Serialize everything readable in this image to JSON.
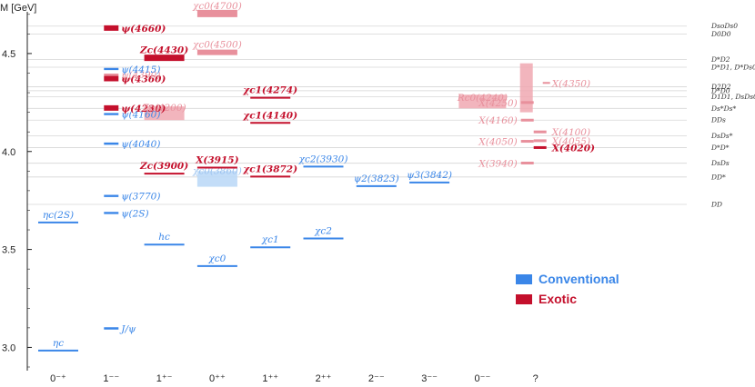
{
  "chart_data": {
    "type": "spectrum",
    "ylabel": "M [GeV]",
    "ylim": [
      2.9,
      4.75
    ],
    "yticks": [
      "3.0",
      "3.5",
      "4.0",
      "4.5"
    ],
    "categories": [
      "0⁻⁺",
      "1⁻⁻",
      "1⁺⁻",
      "0⁺⁺",
      "1⁺⁺",
      "2⁺⁺",
      "2⁻⁻",
      "3⁻⁻",
      "0⁻⁻",
      "?"
    ],
    "colors": {
      "conventional": "#3a86e8",
      "exotic": "#c4102c",
      "exotic_light": "#e8909c",
      "conventional_light": "#a9cdf4",
      "band": "#f0a8b2"
    },
    "legend": [
      {
        "label": "Conventional",
        "kind": "conventional"
      },
      {
        "label": "Exotic",
        "kind": "exotic"
      }
    ],
    "thresholds": [
      {
        "mass": 4.64,
        "label": "DsoDs0"
      },
      {
        "mass": 4.6,
        "label": "D0D0"
      },
      {
        "mass": 4.47,
        "label": "D*D2"
      },
      {
        "mass": 4.43,
        "label": "D*D1, D*Ds0"
      },
      {
        "mass": 4.33,
        "label": "D2D2"
      },
      {
        "mass": 4.31,
        "label": "D*D0"
      },
      {
        "mass": 4.28,
        "label": "D1D1, DsDs0"
      },
      {
        "mass": 4.22,
        "label": "Ds*Ds*"
      },
      {
        "mass": 4.16,
        "label": "DDs"
      },
      {
        "mass": 4.08,
        "label": "DsDs*"
      },
      {
        "mass": 4.02,
        "label": "D*D*"
      },
      {
        "mass": 3.94,
        "label": "DsDs"
      },
      {
        "mass": 3.87,
        "label": "DD*"
      },
      {
        "mass": 3.73,
        "label": "DD"
      }
    ],
    "states": [
      {
        "cat": 0,
        "mass": 2.984,
        "label": "ηc",
        "kind": "conventional"
      },
      {
        "cat": 0,
        "mass": 3.638,
        "label": "ηc(2S)",
        "kind": "conventional"
      },
      {
        "cat": 1,
        "mass": 3.097,
        "label": "J/ψ",
        "kind": "conventional"
      },
      {
        "cat": 1,
        "mass": 3.686,
        "label": "ψ(2S)",
        "kind": "conventional"
      },
      {
        "cat": 1,
        "mass": 3.773,
        "label": "ψ(3770)",
        "kind": "conventional"
      },
      {
        "cat": 1,
        "mass": 4.04,
        "label": "ψ(4040)",
        "kind": "conventional"
      },
      {
        "cat": 1,
        "mass": 4.191,
        "label": "ψ(4160)",
        "kind": "conventional"
      },
      {
        "cat": 1,
        "mass": 4.222,
        "label": "ψ(4230)",
        "kind": "exotic"
      },
      {
        "cat": 1,
        "mass": 4.372,
        "label": "ψ(4360)",
        "kind": "exotic"
      },
      {
        "cat": 1,
        "mass": 4.392,
        "label": "ψ(4390)",
        "kind": "exotic_light"
      },
      {
        "cat": 1,
        "mass": 4.421,
        "label": "ψ(4415)",
        "kind": "conventional"
      },
      {
        "cat": 1,
        "mass": 4.63,
        "label": "ψ(4660)",
        "kind": "exotic"
      },
      {
        "cat": 2,
        "mass": 3.525,
        "label": "hc",
        "kind": "conventional"
      },
      {
        "cat": 2,
        "mass": 3.887,
        "label": "Zc(3900)",
        "kind": "exotic"
      },
      {
        "cat": 2,
        "mass": 4.185,
        "label": "Zc(4200)",
        "kind": "exotic_light",
        "band": [
          4.16,
          4.23
        ]
      },
      {
        "cat": 2,
        "mass": 4.478,
        "label": "Zc(4430)",
        "kind": "exotic"
      },
      {
        "cat": 3,
        "mass": 3.415,
        "label": "χc0",
        "kind": "conventional"
      },
      {
        "cat": 3,
        "mass": 3.862,
        "label": "χc0(3860)",
        "kind": "conventional_light",
        "band": [
          3.82,
          3.9
        ]
      },
      {
        "cat": 3,
        "mass": 3.918,
        "label": "X(3915)",
        "kind": "exotic"
      },
      {
        "cat": 3,
        "mass": 4.506,
        "label": "χc0(4500)",
        "kind": "exotic_light"
      },
      {
        "cat": 3,
        "mass": 4.704,
        "label": "χc0(4700)",
        "kind": "exotic_light"
      },
      {
        "cat": 4,
        "mass": 3.511,
        "label": "χc1",
        "kind": "conventional"
      },
      {
        "cat": 4,
        "mass": 3.872,
        "label": "χc1(3872)",
        "kind": "exotic"
      },
      {
        "cat": 4,
        "mass": 4.146,
        "label": "χc1(4140)",
        "kind": "exotic"
      },
      {
        "cat": 4,
        "mass": 4.274,
        "label": "χc1(4274)",
        "kind": "exotic"
      },
      {
        "cat": 5,
        "mass": 3.556,
        "label": "χc2",
        "kind": "conventional"
      },
      {
        "cat": 5,
        "mass": 3.923,
        "label": "χc2(3930)",
        "kind": "conventional"
      },
      {
        "cat": 6,
        "mass": 3.823,
        "label": "ψ2(3823)",
        "kind": "conventional"
      },
      {
        "cat": 7,
        "mass": 3.842,
        "label": "ψ3(3842)",
        "kind": "conventional"
      },
      {
        "cat": 8,
        "mass": 4.239,
        "label": "Rc0(4240)",
        "kind": "exotic_light",
        "band": [
          4.22,
          4.29
        ]
      },
      {
        "cat": 9,
        "mass": 3.941,
        "label": "X(3940)",
        "kind": "exotic_light"
      },
      {
        "cat": 9,
        "mass": 4.02,
        "label": "X(4020)",
        "kind": "exotic"
      },
      {
        "cat": 9,
        "mass": 4.052,
        "label": "X(4050)",
        "kind": "exotic_light"
      },
      {
        "cat": 9,
        "mass": 4.055,
        "label": "X(4055)",
        "kind": "exotic_light"
      },
      {
        "cat": 9,
        "mass": 4.1,
        "label": "X(4100)",
        "kind": "exotic_light"
      },
      {
        "cat": 9,
        "mass": 4.16,
        "label": "X(4160)",
        "kind": "exotic_light"
      },
      {
        "cat": 9,
        "mass": 4.25,
        "label": "X(4250)",
        "kind": "exotic_light",
        "band": [
          4.2,
          4.45
        ]
      },
      {
        "cat": 9,
        "mass": 4.35,
        "label": "X(4350)",
        "kind": "exotic_light"
      }
    ]
  }
}
